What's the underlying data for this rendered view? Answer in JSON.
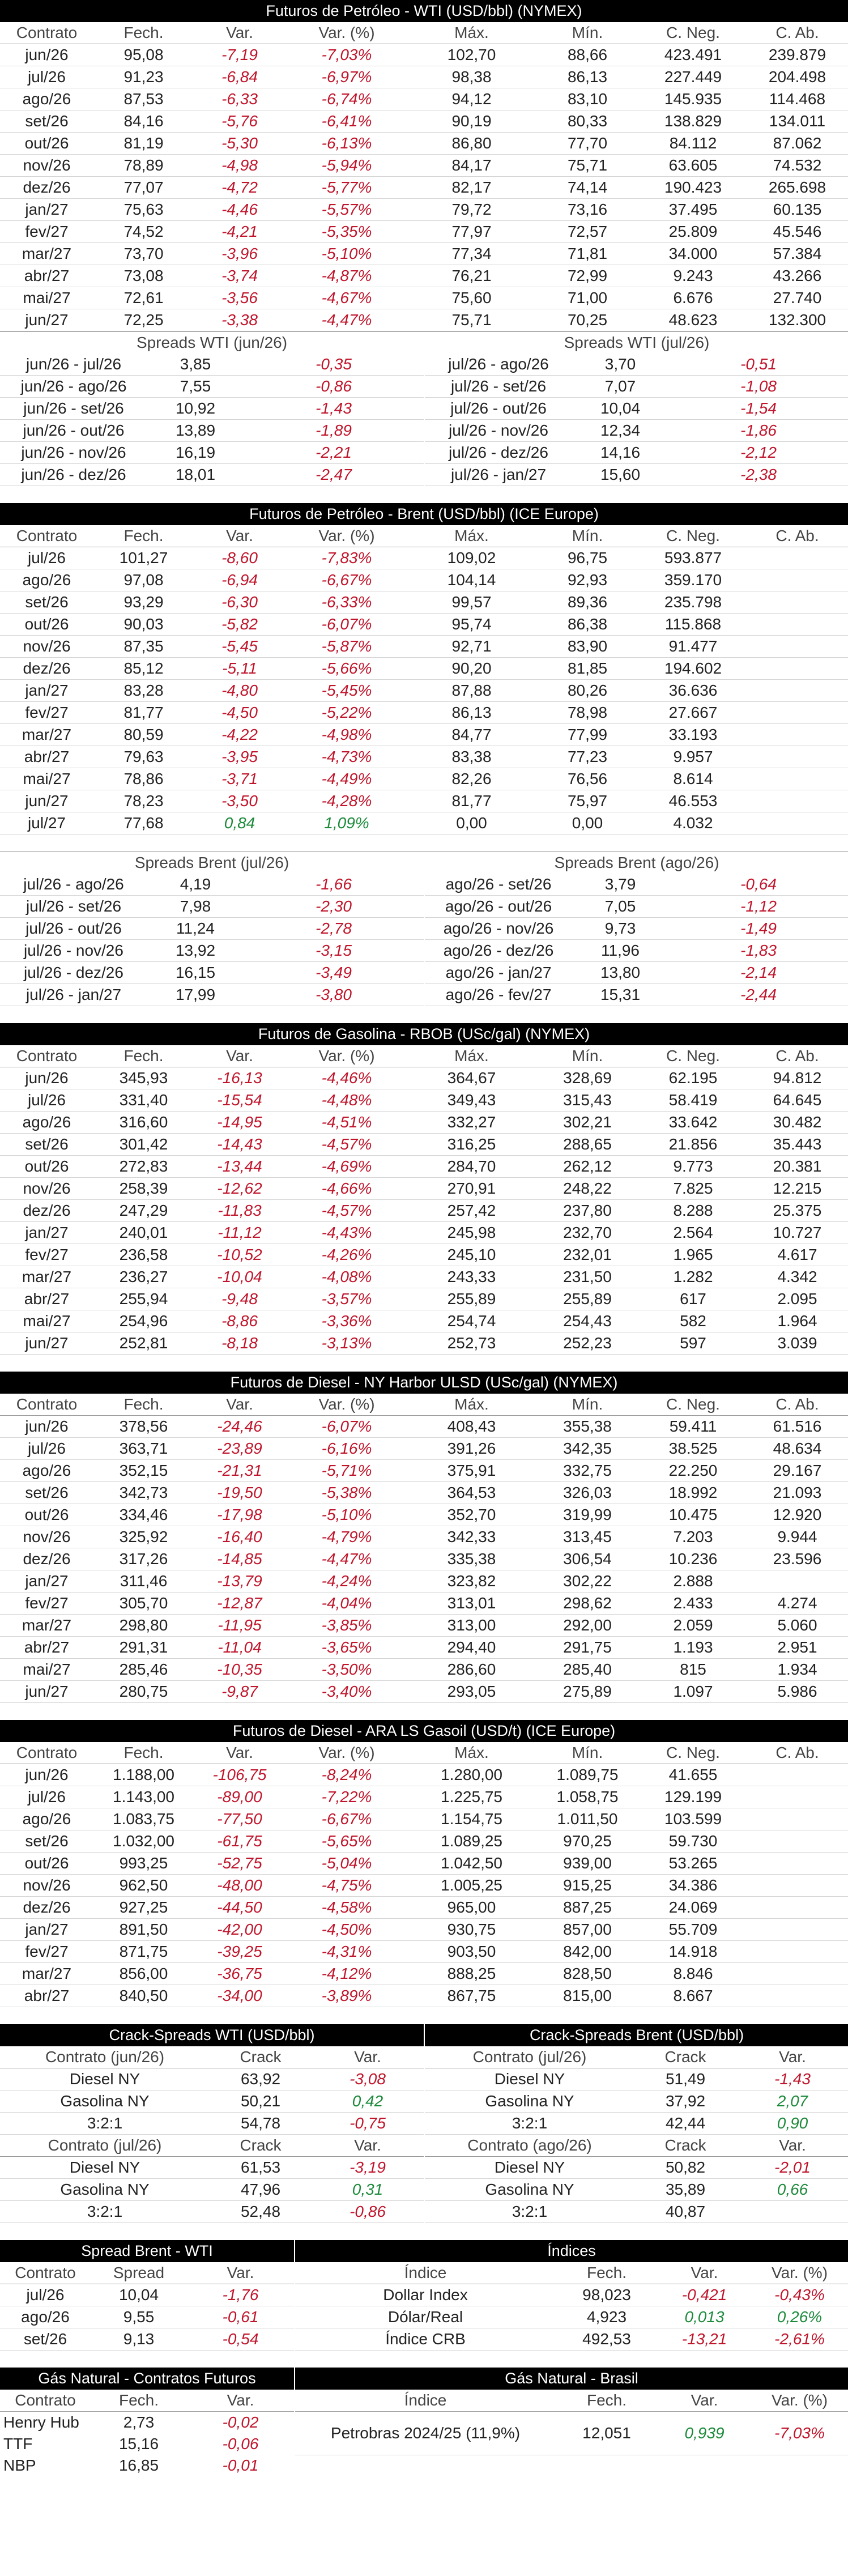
{
  "wti": {
    "title": "Futuros de Petróleo - WTI (USD/bbl) (NYMEX)",
    "headers": [
      "Contrato",
      "Fech.",
      "Var.",
      "Var. (%)",
      "Máx.",
      "Mín.",
      "C. Neg.",
      "C. Ab."
    ],
    "rows": [
      [
        "jun/26",
        "95,08",
        "-7,19",
        "-7,03%",
        "102,70",
        "88,66",
        "423.491",
        "239.879"
      ],
      [
        "jul/26",
        "91,23",
        "-6,84",
        "-6,97%",
        "98,38",
        "86,13",
        "227.449",
        "204.498"
      ],
      [
        "ago/26",
        "87,53",
        "-6,33",
        "-6,74%",
        "94,12",
        "83,10",
        "145.935",
        "114.468"
      ],
      [
        "set/26",
        "84,16",
        "-5,76",
        "-6,41%",
        "90,19",
        "80,33",
        "138.829",
        "134.011"
      ],
      [
        "out/26",
        "81,19",
        "-5,30",
        "-6,13%",
        "86,80",
        "77,70",
        "84.112",
        "87.062"
      ],
      [
        "nov/26",
        "78,89",
        "-4,98",
        "-5,94%",
        "84,17",
        "75,71",
        "63.605",
        "74.532"
      ],
      [
        "dez/26",
        "77,07",
        "-4,72",
        "-5,77%",
        "82,17",
        "74,14",
        "190.423",
        "265.698"
      ],
      [
        "jan/27",
        "75,63",
        "-4,46",
        "-5,57%",
        "79,72",
        "73,16",
        "37.495",
        "60.135"
      ],
      [
        "fev/27",
        "74,52",
        "-4,21",
        "-5,35%",
        "77,97",
        "72,57",
        "25.809",
        "45.546"
      ],
      [
        "mar/27",
        "73,70",
        "-3,96",
        "-5,10%",
        "77,34",
        "71,81",
        "34.000",
        "57.384"
      ],
      [
        "abr/27",
        "73,08",
        "-3,74",
        "-4,87%",
        "76,21",
        "72,99",
        "9.243",
        "43.266"
      ],
      [
        "mai/27",
        "72,61",
        "-3,56",
        "-4,67%",
        "75,60",
        "71,00",
        "6.676",
        "27.740"
      ],
      [
        "jun/27",
        "72,25",
        "-3,38",
        "-4,47%",
        "75,71",
        "70,25",
        "48.623",
        "132.300"
      ]
    ],
    "spreads_left": {
      "title": "Spreads WTI (jun/26)",
      "rows": [
        [
          "jun/26 - jul/26",
          "3,85",
          "-0,35"
        ],
        [
          "jun/26 - ago/26",
          "7,55",
          "-0,86"
        ],
        [
          "jun/26 - set/26",
          "10,92",
          "-1,43"
        ],
        [
          "jun/26 - out/26",
          "13,89",
          "-1,89"
        ],
        [
          "jun/26 - nov/26",
          "16,19",
          "-2,21"
        ],
        [
          "jun/26 - dez/26",
          "18,01",
          "-2,47"
        ]
      ]
    },
    "spreads_right": {
      "title": "Spreads WTI (jul/26)",
      "rows": [
        [
          "jul/26 - ago/26",
          "3,70",
          "-0,51"
        ],
        [
          "jul/26 - set/26",
          "7,07",
          "-1,08"
        ],
        [
          "jul/26 - out/26",
          "10,04",
          "-1,54"
        ],
        [
          "jul/26 - nov/26",
          "12,34",
          "-1,86"
        ],
        [
          "jul/26 - dez/26",
          "14,16",
          "-2,12"
        ],
        [
          "jul/26 - jan/27",
          "15,60",
          "-2,38"
        ]
      ]
    }
  },
  "brent": {
    "title": "Futuros de Petróleo - Brent (USD/bbl) (ICE Europe)",
    "headers": [
      "Contrato",
      "Fech.",
      "Var.",
      "Var. (%)",
      "Máx.",
      "Mín.",
      "C. Neg.",
      "C. Ab."
    ],
    "rows": [
      [
        "jul/26",
        "101,27",
        "-8,60",
        "-7,83%",
        "109,02",
        "96,75",
        "593.877",
        ""
      ],
      [
        "ago/26",
        "97,08",
        "-6,94",
        "-6,67%",
        "104,14",
        "92,93",
        "359.170",
        ""
      ],
      [
        "set/26",
        "93,29",
        "-6,30",
        "-6,33%",
        "99,57",
        "89,36",
        "235.798",
        ""
      ],
      [
        "out/26",
        "90,03",
        "-5,82",
        "-6,07%",
        "95,74",
        "86,38",
        "115.868",
        ""
      ],
      [
        "nov/26",
        "87,35",
        "-5,45",
        "-5,87%",
        "92,71",
        "83,90",
        "91.477",
        ""
      ],
      [
        "dez/26",
        "85,12",
        "-5,11",
        "-5,66%",
        "90,20",
        "81,85",
        "194.602",
        ""
      ],
      [
        "jan/27",
        "83,28",
        "-4,80",
        "-5,45%",
        "87,88",
        "80,26",
        "36.636",
        ""
      ],
      [
        "fev/27",
        "81,77",
        "-4,50",
        "-5,22%",
        "86,13",
        "78,98",
        "27.667",
        ""
      ],
      [
        "mar/27",
        "80,59",
        "-4,22",
        "-4,98%",
        "84,77",
        "77,99",
        "33.193",
        ""
      ],
      [
        "abr/27",
        "79,63",
        "-3,95",
        "-4,73%",
        "83,38",
        "77,23",
        "9.957",
        ""
      ],
      [
        "mai/27",
        "78,86",
        "-3,71",
        "-4,49%",
        "82,26",
        "76,56",
        "8.614",
        ""
      ],
      [
        "jun/27",
        "78,23",
        "-3,50",
        "-4,28%",
        "81,77",
        "75,97",
        "46.553",
        ""
      ],
      [
        "jul/27",
        "77,68",
        "0,84",
        "1,09%",
        "0,00",
        "0,00",
        "4.032",
        ""
      ]
    ],
    "spreads_left": {
      "title": "Spreads Brent (jul/26)",
      "rows": [
        [
          "jul/26 - ago/26",
          "4,19",
          "-1,66"
        ],
        [
          "jul/26 - set/26",
          "7,98",
          "-2,30"
        ],
        [
          "jul/26 - out/26",
          "11,24",
          "-2,78"
        ],
        [
          "jul/26 - nov/26",
          "13,92",
          "-3,15"
        ],
        [
          "jul/26 - dez/26",
          "16,15",
          "-3,49"
        ],
        [
          "jul/26 - jan/27",
          "17,99",
          "-3,80"
        ]
      ]
    },
    "spreads_right": {
      "title": "Spreads Brent (ago/26)",
      "rows": [
        [
          "ago/26 - set/26",
          "3,79",
          "-0,64"
        ],
        [
          "ago/26 - out/26",
          "7,05",
          "-1,12"
        ],
        [
          "ago/26 - nov/26",
          "9,73",
          "-1,49"
        ],
        [
          "ago/26 - dez/26",
          "11,96",
          "-1,83"
        ],
        [
          "ago/26 - jan/27",
          "13,80",
          "-2,14"
        ],
        [
          "ago/26 - fev/27",
          "15,31",
          "-2,44"
        ]
      ]
    }
  },
  "rbob": {
    "title": "Futuros de Gasolina - RBOB (USc/gal) (NYMEX)",
    "headers": [
      "Contrato",
      "Fech.",
      "Var.",
      "Var. (%)",
      "Máx.",
      "Mín.",
      "C. Neg.",
      "C. Ab."
    ],
    "rows": [
      [
        "jun/26",
        "345,93",
        "-16,13",
        "-4,46%",
        "364,67",
        "328,69",
        "62.195",
        "94.812"
      ],
      [
        "jul/26",
        "331,40",
        "-15,54",
        "-4,48%",
        "349,43",
        "315,43",
        "58.419",
        "64.645"
      ],
      [
        "ago/26",
        "316,60",
        "-14,95",
        "-4,51%",
        "332,27",
        "302,21",
        "33.642",
        "30.482"
      ],
      [
        "set/26",
        "301,42",
        "-14,43",
        "-4,57%",
        "316,25",
        "288,65",
        "21.856",
        "35.443"
      ],
      [
        "out/26",
        "272,83",
        "-13,44",
        "-4,69%",
        "284,70",
        "262,12",
        "9.773",
        "20.381"
      ],
      [
        "nov/26",
        "258,39",
        "-12,62",
        "-4,66%",
        "270,91",
        "248,22",
        "7.825",
        "12.215"
      ],
      [
        "dez/26",
        "247,29",
        "-11,83",
        "-4,57%",
        "257,42",
        "237,80",
        "8.288",
        "25.375"
      ],
      [
        "jan/27",
        "240,01",
        "-11,12",
        "-4,43%",
        "245,98",
        "232,70",
        "2.564",
        "10.727"
      ],
      [
        "fev/27",
        "236,58",
        "-10,52",
        "-4,26%",
        "245,10",
        "232,01",
        "1.965",
        "4.617"
      ],
      [
        "mar/27",
        "236,27",
        "-10,04",
        "-4,08%",
        "243,33",
        "231,50",
        "1.282",
        "4.342"
      ],
      [
        "abr/27",
        "255,94",
        "-9,48",
        "-3,57%",
        "255,89",
        "255,89",
        "617",
        "2.095"
      ],
      [
        "mai/27",
        "254,96",
        "-8,86",
        "-3,36%",
        "254,74",
        "254,43",
        "582",
        "1.964"
      ],
      [
        "jun/27",
        "252,81",
        "-8,18",
        "-3,13%",
        "252,73",
        "252,23",
        "597",
        "3.039"
      ]
    ]
  },
  "ulsd": {
    "title": "Futuros de Diesel - NY Harbor ULSD (USc/gal) (NYMEX)",
    "headers": [
      "Contrato",
      "Fech.",
      "Var.",
      "Var. (%)",
      "Máx.",
      "Mín.",
      "C. Neg.",
      "C. Ab."
    ],
    "rows": [
      [
        "jun/26",
        "378,56",
        "-24,46",
        "-6,07%",
        "408,43",
        "355,38",
        "59.411",
        "61.516"
      ],
      [
        "jul/26",
        "363,71",
        "-23,89",
        "-6,16%",
        "391,26",
        "342,35",
        "38.525",
        "48.634"
      ],
      [
        "ago/26",
        "352,15",
        "-21,31",
        "-5,71%",
        "375,91",
        "332,75",
        "22.250",
        "29.167"
      ],
      [
        "set/26",
        "342,73",
        "-19,50",
        "-5,38%",
        "364,53",
        "326,03",
        "18.992",
        "21.093"
      ],
      [
        "out/26",
        "334,46",
        "-17,98",
        "-5,10%",
        "352,70",
        "319,99",
        "10.475",
        "12.920"
      ],
      [
        "nov/26",
        "325,92",
        "-16,40",
        "-4,79%",
        "342,33",
        "313,45",
        "7.203",
        "9.944"
      ],
      [
        "dez/26",
        "317,26",
        "-14,85",
        "-4,47%",
        "335,38",
        "306,54",
        "10.236",
        "23.596"
      ],
      [
        "jan/27",
        "311,46",
        "-13,79",
        "-4,24%",
        "323,82",
        "302,22",
        "2.888",
        ""
      ],
      [
        "fev/27",
        "305,70",
        "-12,87",
        "-4,04%",
        "313,01",
        "298,62",
        "2.433",
        "4.274"
      ],
      [
        "mar/27",
        "298,80",
        "-11,95",
        "-3,85%",
        "313,00",
        "292,00",
        "2.059",
        "5.060"
      ],
      [
        "abr/27",
        "291,31",
        "-11,04",
        "-3,65%",
        "294,40",
        "291,75",
        "1.193",
        "2.951"
      ],
      [
        "mai/27",
        "285,46",
        "-10,35",
        "-3,50%",
        "286,60",
        "285,40",
        "815",
        "1.934"
      ],
      [
        "jun/27",
        "280,75",
        "-9,87",
        "-3,40%",
        "293,05",
        "275,89",
        "1.097",
        "5.986"
      ]
    ]
  },
  "gasoil": {
    "title": "Futuros de Diesel - ARA LS Gasoil (USD/t) (ICE Europe)",
    "headers": [
      "Contrato",
      "Fech.",
      "Var.",
      "Var. (%)",
      "Máx.",
      "Mín.",
      "C. Neg.",
      "C. Ab."
    ],
    "rows": [
      [
        "jun/26",
        "1.188,00",
        "-106,75",
        "-8,24%",
        "1.280,00",
        "1.089,75",
        "41.655",
        ""
      ],
      [
        "jul/26",
        "1.143,00",
        "-89,00",
        "-7,22%",
        "1.225,75",
        "1.058,75",
        "129.199",
        ""
      ],
      [
        "ago/26",
        "1.083,75",
        "-77,50",
        "-6,67%",
        "1.154,75",
        "1.011,50",
        "103.599",
        ""
      ],
      [
        "set/26",
        "1.032,00",
        "-61,75",
        "-5,65%",
        "1.089,25",
        "970,25",
        "59.730",
        ""
      ],
      [
        "out/26",
        "993,25",
        "-52,75",
        "-5,04%",
        "1.042,50",
        "939,00",
        "53.265",
        ""
      ],
      [
        "nov/26",
        "962,50",
        "-48,00",
        "-4,75%",
        "1.005,25",
        "915,25",
        "34.386",
        ""
      ],
      [
        "dez/26",
        "927,25",
        "-44,50",
        "-4,58%",
        "965,00",
        "887,25",
        "24.069",
        ""
      ],
      [
        "jan/27",
        "891,50",
        "-42,00",
        "-4,50%",
        "930,75",
        "857,00",
        "55.709",
        ""
      ],
      [
        "fev/27",
        "871,75",
        "-39,25",
        "-4,31%",
        "903,50",
        "842,00",
        "14.918",
        ""
      ],
      [
        "mar/27",
        "856,00",
        "-36,75",
        "-4,12%",
        "888,25",
        "828,50",
        "8.846",
        ""
      ],
      [
        "abr/27",
        "840,50",
        "-34,00",
        "-3,89%",
        "867,75",
        "815,00",
        "8.667",
        ""
      ]
    ]
  },
  "crack_wti": {
    "title": "Crack-Spreads WTI (USD/bbl)",
    "blocks": [
      {
        "header": [
          "Contrato (jun/26)",
          "Crack",
          "Var."
        ],
        "rows": [
          [
            "Diesel NY",
            "63,92",
            "-3,08"
          ],
          [
            "Gasolina NY",
            "50,21",
            "0,42"
          ],
          [
            "3:2:1",
            "54,78",
            "-0,75"
          ]
        ]
      },
      {
        "header": [
          "Contrato (jul/26)",
          "Crack",
          "Var."
        ],
        "rows": [
          [
            "Diesel NY",
            "61,53",
            "-3,19"
          ],
          [
            "Gasolina NY",
            "47,96",
            "0,31"
          ],
          [
            "3:2:1",
            "52,48",
            "-0,86"
          ]
        ]
      }
    ]
  },
  "crack_brent": {
    "title": "Crack-Spreads Brent (USD/bbl)",
    "blocks": [
      {
        "header": [
          "Contrato (jul/26)",
          "Crack",
          "Var."
        ],
        "rows": [
          [
            "Diesel NY",
            "51,49",
            "-1,43"
          ],
          [
            "Gasolina NY",
            "37,92",
            "2,07"
          ],
          [
            "3:2:1",
            "42,44",
            "0,90"
          ]
        ]
      },
      {
        "header": [
          "Contrato (ago/26)",
          "Crack",
          "Var."
        ],
        "rows": [
          [
            "Diesel NY",
            "50,82",
            "-2,01"
          ],
          [
            "Gasolina NY",
            "35,89",
            "0,66"
          ],
          [
            "3:2:1",
            "40,87",
            ""
          ]
        ]
      }
    ]
  },
  "spread_bw": {
    "title": "Spread Brent - WTI",
    "headers": [
      "Contrato",
      "Spread",
      "Var."
    ],
    "rows": [
      [
        "jul/26",
        "10,04",
        "-1,76"
      ],
      [
        "ago/26",
        "9,55",
        "-0,61"
      ],
      [
        "set/26",
        "9,13",
        "-0,54"
      ]
    ]
  },
  "indices": {
    "title": "Índices",
    "headers": [
      "Índice",
      "Fech.",
      "Var.",
      "Var. (%)"
    ],
    "rows": [
      [
        "Dollar Index",
        "98,023",
        "-0,421",
        "-0,43%"
      ],
      [
        "Dólar/Real",
        "4,923",
        "0,013",
        "0,26%"
      ],
      [
        "Índice CRB",
        "492,53",
        "-13,21",
        "-2,61%"
      ]
    ]
  },
  "gas_futures": {
    "title": "Gás Natural - Contratos Futuros",
    "headers": [
      "Contrato",
      "Fech.",
      "Var."
    ],
    "rows": [
      [
        "Henry Hub",
        "2,73",
        "-0,02"
      ],
      [
        "TTF",
        "15,16",
        "-0,06"
      ],
      [
        "NBP",
        "16,85",
        "-0,01"
      ]
    ]
  },
  "gas_brasil": {
    "title": "Gás Natural - Brasil",
    "headers": [
      "Índice",
      "Fech.",
      "Var.",
      "Var. (%)"
    ],
    "rows": [
      [
        "Petrobras 2024/25 (11,9%)",
        "12,051",
        "0,939",
        "-7,03%"
      ]
    ]
  },
  "colors": {
    "negative": "#c0152b",
    "positive": "#1c8a3a",
    "header_bg": "#000000"
  }
}
